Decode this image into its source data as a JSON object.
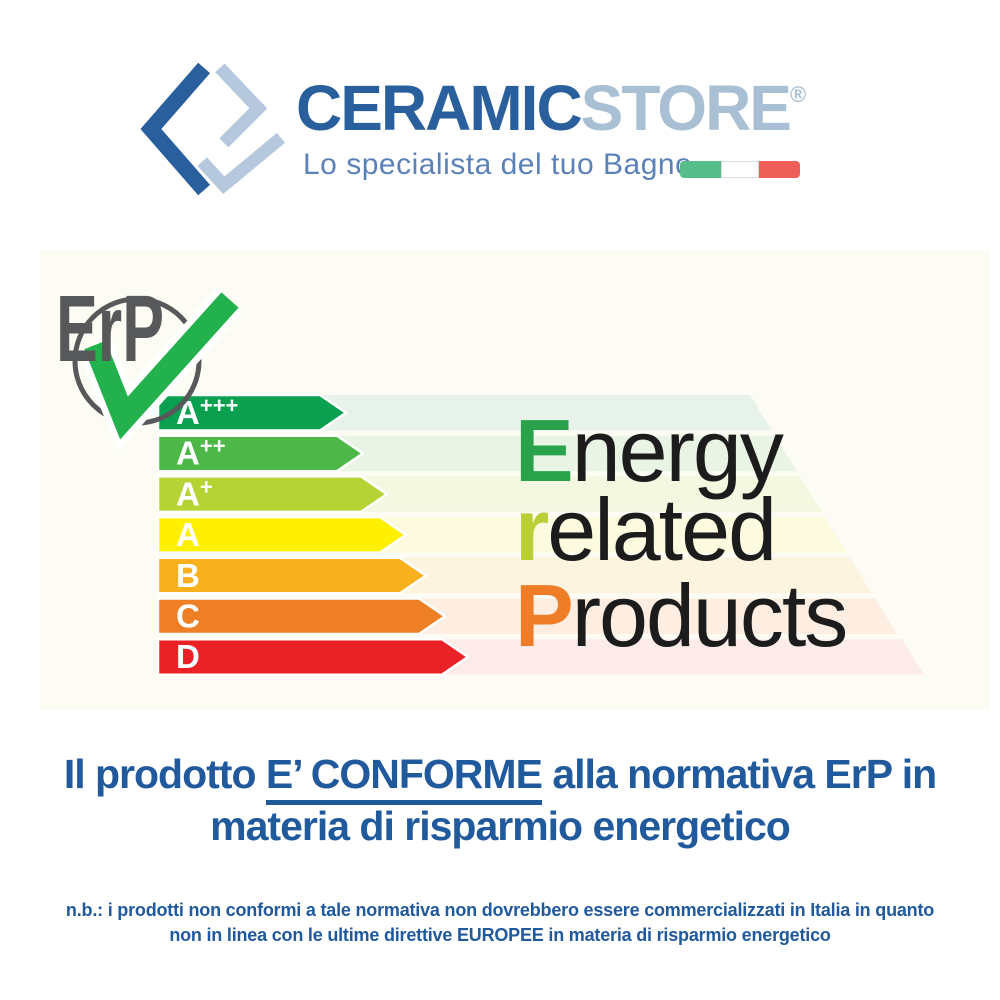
{
  "logo": {
    "brand_primary": "CERAMIC",
    "brand_secondary": "STORE",
    "registered_mark": "®",
    "tagline": "Lo specialista del tuo Bagno",
    "colors": {
      "primary_blue": "#2a5f9e",
      "secondary_blue": "#a9bfd3",
      "icon_light_blue": "#b6c8dd",
      "tagline_blue": "#5b82b8",
      "flag_green": "#57bd8a",
      "flag_red": "#ee5f5a"
    }
  },
  "erp_badge": {
    "label": "ErP",
    "label_color": "#57585a",
    "ring_color": "#57585a",
    "check_color": "#22b14c"
  },
  "energy_label": {
    "panel_background": "#fcfcf4",
    "items": [
      {
        "grade": "A+++",
        "color": "#0aa050",
        "pale": "#e6f2ea",
        "bar_tip": 306,
        "stripe_end": 710
      },
      {
        "grade": "A++",
        "color": "#4db848",
        "pale": "#eaf4e4",
        "bar_tip": 323,
        "stripe_end": 735
      },
      {
        "grade": "A+",
        "color": "#b5d334",
        "pale": "#f4f8e1",
        "bar_tip": 347,
        "stripe_end": 760
      },
      {
        "grade": "A",
        "color": "#ffef00",
        "pale": "#fdfbdf",
        "bar_tip": 366,
        "stripe_end": 785
      },
      {
        "grade": "B",
        "color": "#f8b11d",
        "pale": "#fdf4df",
        "bar_tip": 386,
        "stripe_end": 810
      },
      {
        "grade": "C",
        "color": "#ef7f25",
        "pale": "#fdeee1",
        "bar_tip": 405,
        "stripe_end": 835
      },
      {
        "grade": "D",
        "color": "#ea2127",
        "pale": "#fcebe9",
        "bar_tip": 428,
        "stripe_end": 862
      }
    ]
  },
  "wordmark": {
    "lines": [
      {
        "initial": "E",
        "rest": "nergy",
        "color": "#2aa14b"
      },
      {
        "initial": "r",
        "rest": "elated",
        "color": "#b9cf36"
      },
      {
        "initial": "P",
        "rest": "roducts",
        "color": "#ef7d28"
      }
    ],
    "text_color": "#1c1c1c"
  },
  "headline": {
    "color": "#20599c",
    "line1_pre": "Il prodotto ",
    "line1_underlined": "E’ CONFORME",
    "line1_post": " alla normativa ErP in",
    "line2": "materia di risparmio energetico"
  },
  "note": {
    "color": "#20599c",
    "line1": "n.b.: i prodotti non conformi a tale normativa non dovrebbero essere commercializzati in Italia in quanto",
    "line2_pre": "non in linea con le ultime direttive ",
    "line2_strong": "EUROPEE",
    "line2_post": " in materia di risparmio energetico"
  }
}
